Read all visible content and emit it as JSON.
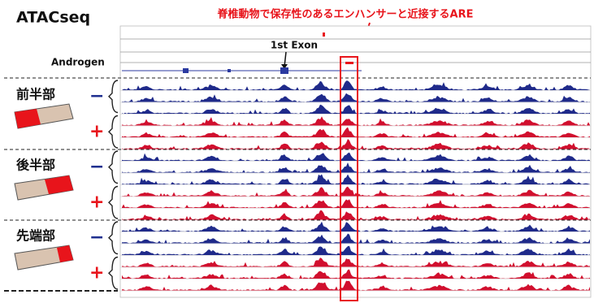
{
  "title": "ATACseq",
  "annotation": "脊椎動物で保存性のあるエンハンサーと近接するARE",
  "exon_label": "1st Exon",
  "gene_label": "Androgen",
  "groups": [
    {
      "label": "前半部",
      "conditions": [
        {
          "sign": "−"
        },
        {
          "sign": "+"
        }
      ]
    },
    {
      "label": "後半部",
      "conditions": [
        {
          "sign": "−"
        },
        {
          "sign": "+"
        }
      ]
    },
    {
      "label": "先端部",
      "conditions": [
        {
          "sign": "−"
        },
        {
          "sign": "+"
        }
      ]
    }
  ]
}
